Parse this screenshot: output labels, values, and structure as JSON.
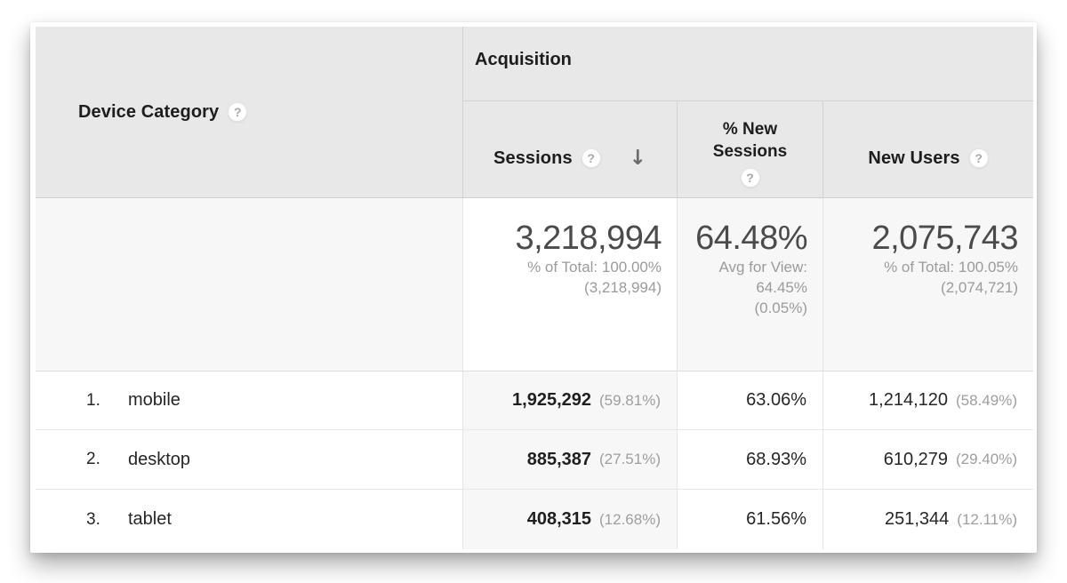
{
  "icons": {
    "help_glyph": "?",
    "sort_desc_glyph": "↓"
  },
  "colors": {
    "header_bg": "#e8e8e8",
    "sorted_column_bg": "#f7f7f7",
    "summary_row_bg": "#f7f7f7",
    "primary_text": "#1d1d1d",
    "muted_text": "#9b9b9b"
  },
  "table": {
    "dimension_header": "Device Category",
    "group_header": "Acquisition",
    "columns": {
      "sessions": "Sessions",
      "new_sessions_line1": "% New",
      "new_sessions_line2": "Sessions",
      "new_users": "New Users"
    },
    "summary": {
      "sessions_value": "3,218,994",
      "sessions_sub1": "% of Total: 100.00%",
      "sessions_sub2": "(3,218,994)",
      "new_sessions_value": "64.48%",
      "new_sessions_sub1": "Avg for View:",
      "new_sessions_sub2": "64.45%",
      "new_sessions_sub3": "(0.05%)",
      "new_users_value": "2,075,743",
      "new_users_sub1": "% of Total: 100.05%",
      "new_users_sub2": "(2,074,721)"
    },
    "rows": [
      {
        "rank": "1.",
        "device": "mobile",
        "sessions": "1,925,292",
        "sessions_pct": "(59.81%)",
        "new_sessions": "63.06%",
        "new_users": "1,214,120",
        "new_users_pct": "(58.49%)"
      },
      {
        "rank": "2.",
        "device": "desktop",
        "sessions": "885,387",
        "sessions_pct": "(27.51%)",
        "new_sessions": "68.93%",
        "new_users": "610,279",
        "new_users_pct": "(29.40%)"
      },
      {
        "rank": "3.",
        "device": "tablet",
        "sessions": "408,315",
        "sessions_pct": "(12.68%)",
        "new_sessions": "61.56%",
        "new_users": "251,344",
        "new_users_pct": "(12.11%)"
      }
    ]
  }
}
